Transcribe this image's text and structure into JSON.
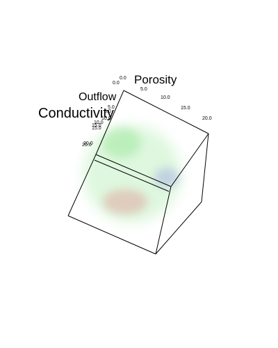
{
  "chart_data": {
    "type": "heatmap",
    "render_style": "3d-volume",
    "axes": {
      "x": {
        "label": "Porosity",
        "ticks": [
          "5.0",
          "10.0",
          "15.0",
          "20.0"
        ],
        "range": [
          0,
          20
        ]
      },
      "y": {
        "label": "Outflow",
        "ticks": [
          "0.0",
          "5.0",
          "10.0",
          "15.0",
          "20.0"
        ],
        "range": [
          0,
          20
        ]
      },
      "z": {
        "label": "Conductivity",
        "ticks": [
          "0.0",
          "5.0",
          "10.0",
          "15.0",
          "20.0"
        ],
        "range": [
          0,
          20
        ]
      }
    },
    "blobs": [
      {
        "color": "#7ee07e",
        "label": "green"
      },
      {
        "color": "#e07e7e",
        "label": "red"
      },
      {
        "color": "#8c8ce6",
        "label": "blue"
      }
    ],
    "legend": false,
    "grid": false
  }
}
